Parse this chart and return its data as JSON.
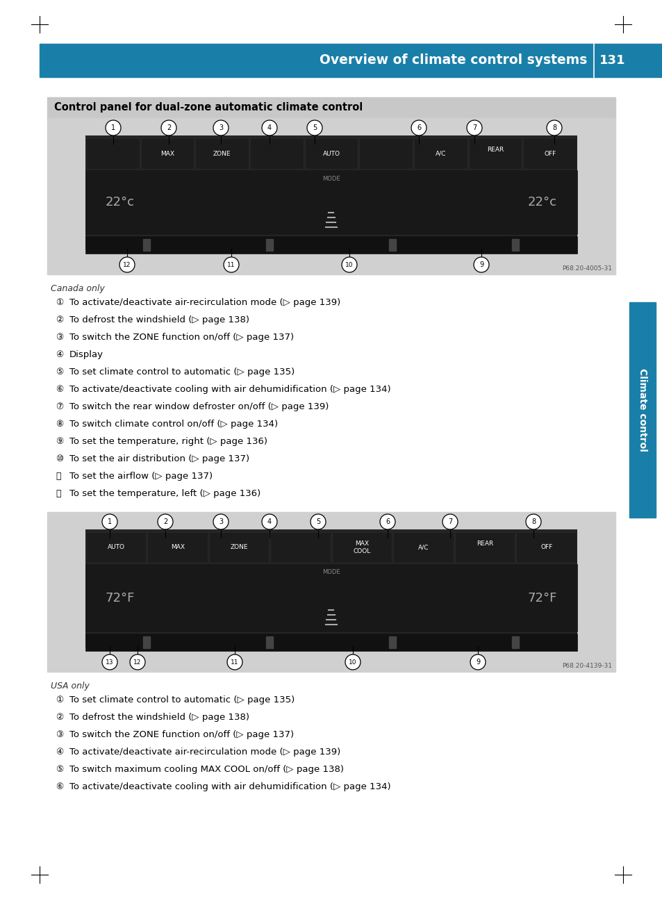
{
  "page_bg": "#ffffff",
  "header_bg": "#1a7fa8",
  "header_text": "Overview of climate control systems",
  "header_page_num": "131",
  "header_text_color": "#ffffff",
  "side_tab_bg": "#1a7fa8",
  "side_tab_text": "Climate control",
  "side_tab_text_color": "#ffffff",
  "box_title": "Control panel for dual-zone automatic climate control",
  "box_title_bg": "#c8c8c8",
  "box_title_text_color": "#000000",
  "canada_only": "Canada only",
  "canada_items": [
    [
      "①",
      "To activate∕deactivate air-recirculation mode (▷ page 139)"
    ],
    [
      "②",
      "To defrost the windshield (▷ page 138)"
    ],
    [
      "③",
      "To switch the ZONE function on∕off (▷ page 137)"
    ],
    [
      "④",
      "Display"
    ],
    [
      "⑤",
      "To set climate control to automatic (▷ page 135)"
    ],
    [
      "⑥",
      "To activate∕deactivate cooling with air dehumidification (▷ page 134)"
    ],
    [
      "⑦",
      "To switch the rear window defroster on∕off (▷ page 139)"
    ],
    [
      "⑧",
      "To switch climate control on∕off (▷ page 134)"
    ],
    [
      "⑨",
      "To set the temperature, right (▷ page 136)"
    ],
    [
      "⑩",
      "To set the air distribution (▷ page 137)"
    ],
    [
      "⑪",
      "To set the airflow (▷ page 137)"
    ],
    [
      "⑫",
      "To set the temperature, left (▷ page 136)"
    ]
  ],
  "usa_only": "USA only",
  "usa_items": [
    [
      "①",
      "To set climate control to automatic (▷ page 135)"
    ],
    [
      "②",
      "To defrost the windshield (▷ page 138)"
    ],
    [
      "③",
      "To switch the ZONE function on∕off (▷ page 137)"
    ],
    [
      "④",
      "To activate∕deactivate air-recirculation mode (▷ page 139)"
    ],
    [
      "⑤",
      "To switch maximum cooling MAX COOL on∕off (▷ page 138)"
    ],
    [
      "⑥",
      "To activate∕deactivate cooling with air dehumidification (▷ page 134)"
    ]
  ],
  "img1_caption": "P68.20-4005-31",
  "img2_caption": "P68.20-4139-31",
  "panel_bg": "#d0d0d0",
  "dark_panel": "#252525",
  "btn_color": "#1c1c1c",
  "display_color": "#181818"
}
